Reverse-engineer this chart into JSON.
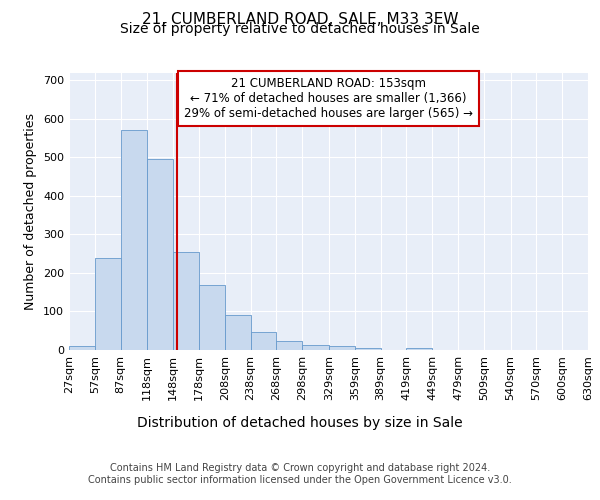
{
  "title1": "21, CUMBERLAND ROAD, SALE, M33 3EW",
  "title2": "Size of property relative to detached houses in Sale",
  "xlabel": "Distribution of detached houses by size in Sale",
  "ylabel": "Number of detached properties",
  "bar_values": [
    10,
    240,
    570,
    495,
    255,
    168,
    90,
    47,
    24,
    12,
    10,
    5,
    0,
    5,
    0,
    0,
    0,
    0,
    0,
    0
  ],
  "bin_edges": [
    27,
    57,
    87,
    118,
    148,
    178,
    208,
    238,
    268,
    298,
    329,
    359,
    389,
    419,
    449,
    479,
    509,
    540,
    570,
    600,
    630
  ],
  "tick_labels": [
    "27sqm",
    "57sqm",
    "87sqm",
    "118sqm",
    "148sqm",
    "178sqm",
    "208sqm",
    "238sqm",
    "268sqm",
    "298sqm",
    "329sqm",
    "359sqm",
    "389sqm",
    "419sqm",
    "449sqm",
    "479sqm",
    "509sqm",
    "540sqm",
    "570sqm",
    "600sqm",
    "630sqm"
  ],
  "bar_color": "#c8d9ee",
  "bar_edge_color": "#6699cc",
  "property_size": 153,
  "red_line_color": "#cc0000",
  "annotation_line1": "21 CUMBERLAND ROAD: 153sqm",
  "annotation_line2": "← 71% of detached houses are smaller (1,366)",
  "annotation_line3": "29% of semi-detached houses are larger (565) →",
  "annotation_box_color": "#ffffff",
  "annotation_border_color": "#cc0000",
  "ylim": [
    0,
    720
  ],
  "yticks": [
    0,
    100,
    200,
    300,
    400,
    500,
    600,
    700
  ],
  "background_color": "#e8eef8",
  "footer_text": "Contains HM Land Registry data © Crown copyright and database right 2024.\nContains public sector information licensed under the Open Government Licence v3.0.",
  "title1_fontsize": 11,
  "title2_fontsize": 10,
  "xlabel_fontsize": 10,
  "ylabel_fontsize": 9,
  "tick_fontsize": 8,
  "annotation_fontsize": 8.5,
  "footer_fontsize": 7
}
